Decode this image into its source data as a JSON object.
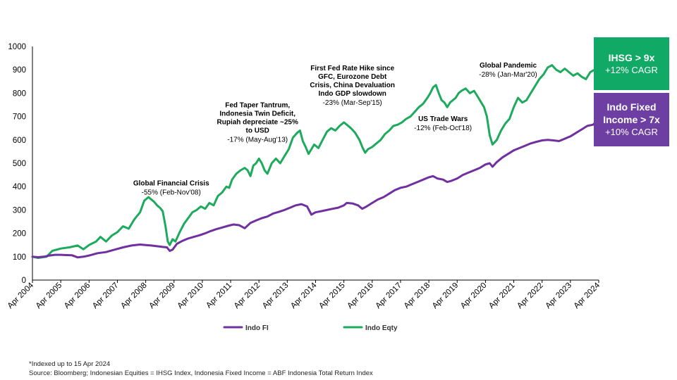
{
  "chart_data": {
    "type": "line",
    "ylim": [
      0,
      1000
    ],
    "yticks": [
      0,
      100,
      200,
      300,
      400,
      500,
      600,
      700,
      800,
      900,
      1000
    ],
    "xticks": [
      "Apr 2004",
      "Apr 2005",
      "Apr 2006",
      "Apr 2007",
      "Apr 2008",
      "Apr 2009",
      "Apr 2010",
      "Apr 2011",
      "Apr 2012",
      "Apr 2013",
      "Apr 2014",
      "Apr 2015",
      "Apr 2016",
      "Apr 2017",
      "Apr 2018",
      "Apr 2019",
      "Apr 2020",
      "Apr 2021",
      "Apr 2022",
      "Apr 2023",
      "Apr 2024"
    ],
    "x_range": [
      2004.0,
      2024.0
    ],
    "series": [
      {
        "name": "Indo Eqty",
        "color": "#1DAA5C",
        "points": [
          [
            2004.0,
            100
          ],
          [
            2004.2,
            95
          ],
          [
            2004.5,
            100
          ],
          [
            2004.7,
            125
          ],
          [
            2005.0,
            135
          ],
          [
            2005.3,
            140
          ],
          [
            2005.6,
            148
          ],
          [
            2005.8,
            132
          ],
          [
            2006.0,
            150
          ],
          [
            2006.25,
            165
          ],
          [
            2006.4,
            185
          ],
          [
            2006.6,
            165
          ],
          [
            2006.8,
            190
          ],
          [
            2007.0,
            205
          ],
          [
            2007.2,
            230
          ],
          [
            2007.4,
            220
          ],
          [
            2007.6,
            260
          ],
          [
            2007.8,
            290
          ],
          [
            2007.95,
            340
          ],
          [
            2008.1,
            355
          ],
          [
            2008.2,
            345
          ],
          [
            2008.3,
            335
          ],
          [
            2008.4,
            320
          ],
          [
            2008.5,
            310
          ],
          [
            2008.6,
            295
          ],
          [
            2008.7,
            230
          ],
          [
            2008.78,
            165
          ],
          [
            2008.85,
            150
          ],
          [
            2008.95,
            175
          ],
          [
            2009.05,
            165
          ],
          [
            2009.2,
            205
          ],
          [
            2009.35,
            240
          ],
          [
            2009.5,
            265
          ],
          [
            2009.65,
            290
          ],
          [
            2009.8,
            300
          ],
          [
            2009.95,
            315
          ],
          [
            2010.1,
            305
          ],
          [
            2010.25,
            330
          ],
          [
            2010.4,
            320
          ],
          [
            2010.55,
            360
          ],
          [
            2010.7,
            375
          ],
          [
            2010.85,
            400
          ],
          [
            2010.95,
            395
          ],
          [
            2011.05,
            430
          ],
          [
            2011.2,
            455
          ],
          [
            2011.35,
            470
          ],
          [
            2011.5,
            480
          ],
          [
            2011.6,
            470
          ],
          [
            2011.7,
            445
          ],
          [
            2011.8,
            490
          ],
          [
            2011.9,
            500
          ],
          [
            2012.0,
            520
          ],
          [
            2012.1,
            500
          ],
          [
            2012.2,
            470
          ],
          [
            2012.3,
            455
          ],
          [
            2012.45,
            500
          ],
          [
            2012.6,
            520
          ],
          [
            2012.75,
            500
          ],
          [
            2012.9,
            530
          ],
          [
            2013.05,
            560
          ],
          [
            2013.2,
            610
          ],
          [
            2013.35,
            630
          ],
          [
            2013.45,
            640
          ],
          [
            2013.55,
            595
          ],
          [
            2013.65,
            570
          ],
          [
            2013.75,
            540
          ],
          [
            2013.85,
            560
          ],
          [
            2013.95,
            580
          ],
          [
            2014.1,
            565
          ],
          [
            2014.25,
            600
          ],
          [
            2014.4,
            635
          ],
          [
            2014.55,
            650
          ],
          [
            2014.7,
            640
          ],
          [
            2014.85,
            660
          ],
          [
            2015.0,
            675
          ],
          [
            2015.1,
            665
          ],
          [
            2015.25,
            650
          ],
          [
            2015.4,
            630
          ],
          [
            2015.55,
            600
          ],
          [
            2015.65,
            570
          ],
          [
            2015.75,
            545
          ],
          [
            2015.85,
            560
          ],
          [
            2016.0,
            570
          ],
          [
            2016.15,
            585
          ],
          [
            2016.3,
            600
          ],
          [
            2016.45,
            625
          ],
          [
            2016.6,
            640
          ],
          [
            2016.75,
            660
          ],
          [
            2016.9,
            665
          ],
          [
            2017.05,
            675
          ],
          [
            2017.2,
            690
          ],
          [
            2017.35,
            700
          ],
          [
            2017.5,
            720
          ],
          [
            2017.65,
            740
          ],
          [
            2017.8,
            755
          ],
          [
            2017.95,
            780
          ],
          [
            2018.05,
            800
          ],
          [
            2018.15,
            825
          ],
          [
            2018.25,
            835
          ],
          [
            2018.35,
            800
          ],
          [
            2018.45,
            770
          ],
          [
            2018.55,
            760
          ],
          [
            2018.65,
            740
          ],
          [
            2018.75,
            760
          ],
          [
            2018.85,
            770
          ],
          [
            2018.95,
            780
          ],
          [
            2019.05,
            800
          ],
          [
            2019.15,
            810
          ],
          [
            2019.3,
            820
          ],
          [
            2019.45,
            800
          ],
          [
            2019.6,
            810
          ],
          [
            2019.75,
            780
          ],
          [
            2019.85,
            760
          ],
          [
            2019.95,
            740
          ],
          [
            2020.05,
            700
          ],
          [
            2020.15,
            620
          ],
          [
            2020.25,
            580
          ],
          [
            2020.4,
            600
          ],
          [
            2020.55,
            640
          ],
          [
            2020.7,
            670
          ],
          [
            2020.85,
            690
          ],
          [
            2021.0,
            740
          ],
          [
            2021.15,
            780
          ],
          [
            2021.3,
            760
          ],
          [
            2021.45,
            770
          ],
          [
            2021.6,
            800
          ],
          [
            2021.75,
            830
          ],
          [
            2021.9,
            860
          ],
          [
            2022.05,
            880
          ],
          [
            2022.2,
            910
          ],
          [
            2022.35,
            920
          ],
          [
            2022.5,
            900
          ],
          [
            2022.65,
            890
          ],
          [
            2022.8,
            905
          ],
          [
            2022.95,
            890
          ],
          [
            2023.1,
            875
          ],
          [
            2023.25,
            885
          ],
          [
            2023.4,
            870
          ],
          [
            2023.55,
            860
          ],
          [
            2023.7,
            890
          ],
          [
            2023.85,
            900
          ],
          [
            2024.0,
            930
          ]
        ]
      },
      {
        "name": "Indo FI",
        "color": "#7030A0",
        "points": [
          [
            2004.0,
            100
          ],
          [
            2004.2,
            98
          ],
          [
            2004.4,
            100
          ],
          [
            2004.6,
            105
          ],
          [
            2004.8,
            108
          ],
          [
            2005.0,
            108
          ],
          [
            2005.2,
            107
          ],
          [
            2005.4,
            106
          ],
          [
            2005.6,
            97
          ],
          [
            2005.8,
            100
          ],
          [
            2006.0,
            105
          ],
          [
            2006.3,
            115
          ],
          [
            2006.6,
            120
          ],
          [
            2006.9,
            130
          ],
          [
            2007.2,
            140
          ],
          [
            2007.5,
            148
          ],
          [
            2007.8,
            152
          ],
          [
            2008.0,
            150
          ],
          [
            2008.2,
            148
          ],
          [
            2008.4,
            145
          ],
          [
            2008.6,
            142
          ],
          [
            2008.75,
            140
          ],
          [
            2008.85,
            125
          ],
          [
            2008.95,
            130
          ],
          [
            2009.1,
            155
          ],
          [
            2009.3,
            168
          ],
          [
            2009.5,
            178
          ],
          [
            2009.7,
            185
          ],
          [
            2009.9,
            192
          ],
          [
            2010.1,
            200
          ],
          [
            2010.3,
            210
          ],
          [
            2010.5,
            218
          ],
          [
            2010.7,
            225
          ],
          [
            2010.9,
            232
          ],
          [
            2011.1,
            238
          ],
          [
            2011.3,
            235
          ],
          [
            2011.5,
            222
          ],
          [
            2011.7,
            245
          ],
          [
            2011.9,
            255
          ],
          [
            2012.1,
            265
          ],
          [
            2012.3,
            272
          ],
          [
            2012.5,
            285
          ],
          [
            2012.7,
            292
          ],
          [
            2012.9,
            300
          ],
          [
            2013.1,
            310
          ],
          [
            2013.3,
            320
          ],
          [
            2013.5,
            325
          ],
          [
            2013.7,
            315
          ],
          [
            2013.85,
            280
          ],
          [
            2014.0,
            290
          ],
          [
            2014.2,
            295
          ],
          [
            2014.4,
            300
          ],
          [
            2014.6,
            305
          ],
          [
            2014.8,
            310
          ],
          [
            2015.0,
            320
          ],
          [
            2015.1,
            330
          ],
          [
            2015.3,
            328
          ],
          [
            2015.5,
            320
          ],
          [
            2015.65,
            305
          ],
          [
            2015.8,
            315
          ],
          [
            2016.0,
            330
          ],
          [
            2016.2,
            345
          ],
          [
            2016.4,
            355
          ],
          [
            2016.6,
            370
          ],
          [
            2016.8,
            385
          ],
          [
            2017.0,
            395
          ],
          [
            2017.2,
            400
          ],
          [
            2017.4,
            410
          ],
          [
            2017.6,
            420
          ],
          [
            2017.8,
            430
          ],
          [
            2018.0,
            440
          ],
          [
            2018.15,
            445
          ],
          [
            2018.3,
            435
          ],
          [
            2018.5,
            430
          ],
          [
            2018.65,
            420
          ],
          [
            2018.8,
            425
          ],
          [
            2019.0,
            435
          ],
          [
            2019.2,
            450
          ],
          [
            2019.4,
            460
          ],
          [
            2019.6,
            470
          ],
          [
            2019.8,
            480
          ],
          [
            2020.0,
            495
          ],
          [
            2020.15,
            500
          ],
          [
            2020.25,
            485
          ],
          [
            2020.4,
            505
          ],
          [
            2020.6,
            525
          ],
          [
            2020.8,
            540
          ],
          [
            2021.0,
            555
          ],
          [
            2021.2,
            565
          ],
          [
            2021.4,
            575
          ],
          [
            2021.6,
            585
          ],
          [
            2021.8,
            592
          ],
          [
            2022.0,
            598
          ],
          [
            2022.2,
            600
          ],
          [
            2022.4,
            598
          ],
          [
            2022.6,
            595
          ],
          [
            2022.8,
            605
          ],
          [
            2023.0,
            615
          ],
          [
            2023.2,
            630
          ],
          [
            2023.4,
            645
          ],
          [
            2023.6,
            660
          ],
          [
            2023.8,
            665
          ],
          [
            2024.0,
            690
          ]
        ]
      }
    ],
    "annotations": [
      {
        "id": "gfc",
        "x": 2008.9,
        "y": 405,
        "title": [
          "Global Financial Crisis"
        ],
        "sub": "-55% (Feb-Nov'08)"
      },
      {
        "id": "taper",
        "x": 2011.95,
        "y": 740,
        "title": [
          "Fed Taper Tantrum,",
          "Indonesia Twin Deficit,",
          "Rupiah depreciate ~25%",
          "to USD"
        ],
        "sub": "-17% (May-Aug'13)"
      },
      {
        "id": "hike",
        "x": 2015.3,
        "y": 898,
        "title": [
          "First Fed Rate Hike since",
          "GFC, Eurozone Debt",
          "Crisis, China Devaluation",
          "Indo GDP slowdown"
        ],
        "sub": "-23% (Mar-Sep'15)"
      },
      {
        "id": "trade",
        "x": 2018.5,
        "y": 680,
        "title": [
          "US Trade Wars"
        ],
        "sub": "-12% (Feb-Oct'18)"
      },
      {
        "id": "pandemic",
        "x": 2020.8,
        "y": 910,
        "title": [
          "Global Pandemic"
        ],
        "sub": "-28% (Jan-Mar'20)"
      }
    ],
    "legend": [
      {
        "name": "Indo FI",
        "color": "#7030A0"
      },
      {
        "name": "Indo Eqty",
        "color": "#1DAA5C"
      }
    ]
  },
  "callouts": {
    "ihsg": {
      "title": "IHSG > 9x",
      "sub": "+12% CAGR",
      "color": "#11A966"
    },
    "fi": {
      "title_line1": "Indo Fixed",
      "title_line2": "Income > 7x",
      "sub": "+10% CAGR",
      "color": "#6E3FA3"
    }
  },
  "footnotes": {
    "line1": "*Indexed up to 15 Apr 2024",
    "line2": "Source: Bloomberg; Indonesian Equities = IHSG Index, Indonesia Fixed Income = ABF Indonesia Total Return Index"
  }
}
